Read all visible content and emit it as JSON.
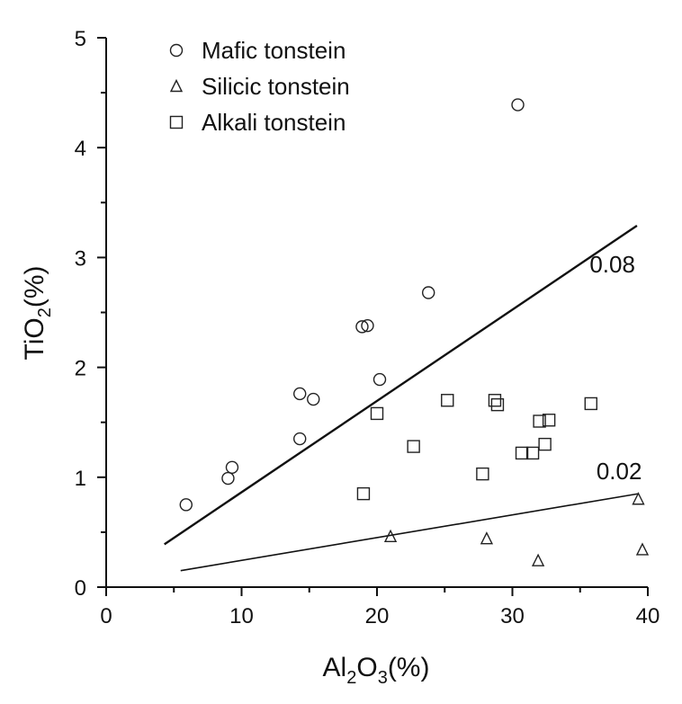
{
  "chart_data": {
    "type": "scatter",
    "title": "",
    "xlabel": {
      "base": "Al",
      "sub1": "2",
      "mid": "O",
      "sub2": "3",
      "unit": "(%)"
    },
    "ylabel": {
      "base": "TiO",
      "sub": "2",
      "unit": "(%)"
    },
    "xlim": [
      0,
      40
    ],
    "ylim": [
      0,
      5
    ],
    "xticks": [
      "0",
      "10",
      "20",
      "30",
      "40"
    ],
    "yticks": [
      "0",
      "1",
      "2",
      "3",
      "4",
      "5"
    ],
    "grid": false,
    "legend_position": "top-left",
    "series": [
      {
        "name": "Mafic tonstein",
        "marker": "circle",
        "points": [
          [
            5.9,
            0.75
          ],
          [
            9.0,
            0.99
          ],
          [
            9.3,
            1.09
          ],
          [
            14.3,
            1.76
          ],
          [
            14.3,
            1.35
          ],
          [
            15.3,
            1.71
          ],
          [
            18.9,
            2.37
          ],
          [
            19.3,
            2.38
          ],
          [
            20.2,
            1.89
          ],
          [
            23.8,
            2.68
          ],
          [
            30.4,
            4.39
          ]
        ]
      },
      {
        "name": "Silicic tonstein",
        "marker": "triangle",
        "points": [
          [
            21.0,
            0.46
          ],
          [
            28.1,
            0.44
          ],
          [
            31.9,
            0.24
          ],
          [
            39.3,
            0.8
          ],
          [
            39.6,
            0.34
          ]
        ]
      },
      {
        "name": "Alkali tonstein",
        "marker": "square",
        "points": [
          [
            19.0,
            0.85
          ],
          [
            20.0,
            1.58
          ],
          [
            22.7,
            1.28
          ],
          [
            25.2,
            1.7
          ],
          [
            27.8,
            1.03
          ],
          [
            28.7,
            1.7
          ],
          [
            28.9,
            1.66
          ],
          [
            30.7,
            1.22
          ],
          [
            31.5,
            1.22
          ],
          [
            32.0,
            1.51
          ],
          [
            32.7,
            1.52
          ],
          [
            32.4,
            1.3
          ],
          [
            35.8,
            1.67
          ]
        ]
      }
    ],
    "reference_lines": [
      {
        "label": "0.08",
        "from": [
          4.3,
          0.39
        ],
        "to": [
          39.2,
          3.29
        ]
      },
      {
        "label": "0.02",
        "from": [
          5.5,
          0.15
        ],
        "to": [
          39.3,
          0.85
        ]
      }
    ]
  }
}
